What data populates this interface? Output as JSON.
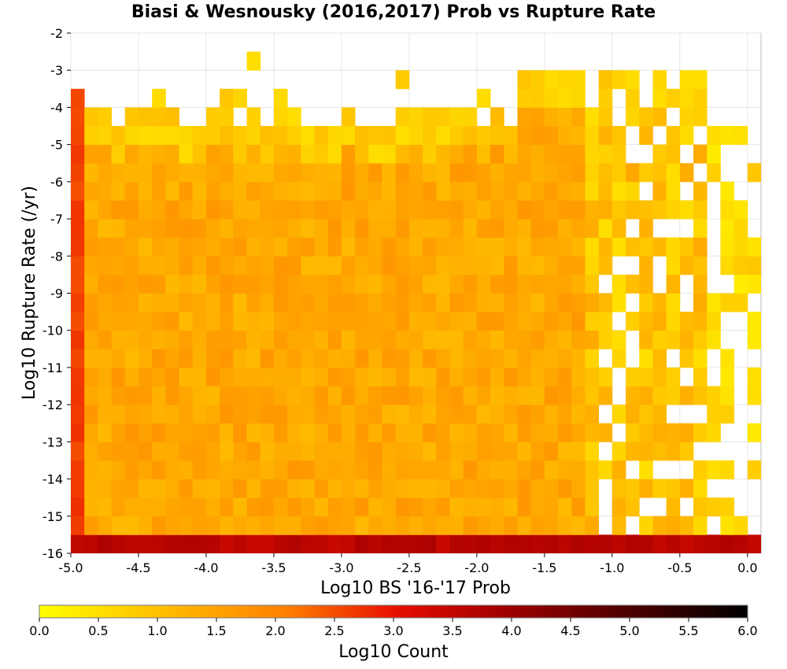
{
  "chart_data": {
    "type": "heatmap",
    "title": "Biasi & Wesnousky (2016,2017) Prob vs Rupture Rate",
    "xlabel": "Log10 BS '16-'17 Prob",
    "ylabel": "Log10 Rupture Rate (/yr)",
    "xlim": [
      -5.0,
      0.1
    ],
    "ylim": [
      -16,
      -2
    ],
    "x_ticks": [
      "-5.0",
      "-4.5",
      "-4.0",
      "-3.5",
      "-3.0",
      "-2.5",
      "-2.0",
      "-1.5",
      "-1.0",
      "-0.5",
      "0.0"
    ],
    "y_ticks": [
      "-2",
      "-3",
      "-4",
      "-5",
      "-6",
      "-7",
      "-8",
      "-9",
      "-10",
      "-11",
      "-12",
      "-13",
      "-14",
      "-15",
      "-16"
    ],
    "bin_size_x": 0.1,
    "bin_size_y": 0.5,
    "value_meaning": "Log10 Count per bin",
    "summary_levels": {
      "first_column_x_-5.0": 2.6,
      "bottom_row_y_-16": 3.6,
      "typical_interior": 1.4,
      "upper_edge": 0.5
    },
    "colorbar": {
      "label": "Log10 Count",
      "min": 0.0,
      "max": 6.0,
      "ticks": [
        "0.0",
        "0.5",
        "1.0",
        "1.5",
        "2.0",
        "2.5",
        "3.0",
        "3.5",
        "4.0",
        "4.5",
        "5.0",
        "5.5",
        "6.0"
      ],
      "colors": [
        "#ffff00",
        "#ffbb00",
        "#ff7f00",
        "#e81000",
        "#a30000",
        "#520000",
        "#000000"
      ]
    },
    "grid": true,
    "legend": "colorbar-bottom"
  }
}
